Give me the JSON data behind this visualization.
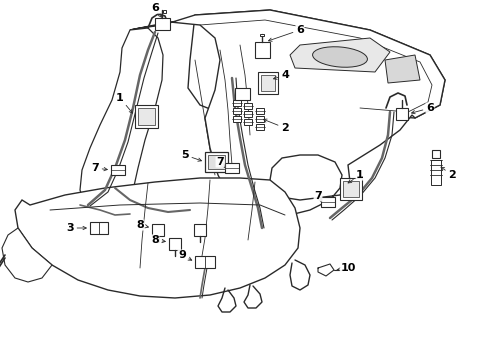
{
  "bg_color": "#ffffff",
  "line_color": "#2a2a2a",
  "text_color": "#000000",
  "figsize": [
    4.89,
    3.6
  ],
  "dpi": 100,
  "xlim": [
    0,
    489
  ],
  "ylim": [
    0,
    360
  ]
}
